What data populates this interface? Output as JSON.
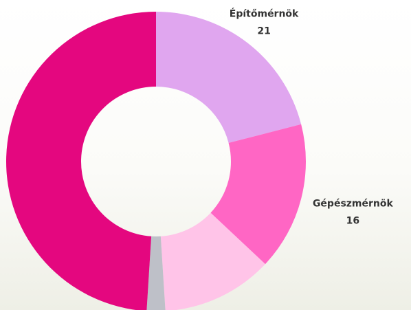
{
  "chart_data": {
    "type": "donut",
    "categories": [
      "Építőmérnök",
      "Gépészmérnök",
      null,
      null,
      null
    ],
    "values": [
      21,
      16,
      12,
      2,
      49
    ],
    "colors": [
      "#e0a6ef",
      "#ff66c4",
      "#ffc4e8",
      "#bec0c8",
      "#e4077f"
    ]
  }
}
